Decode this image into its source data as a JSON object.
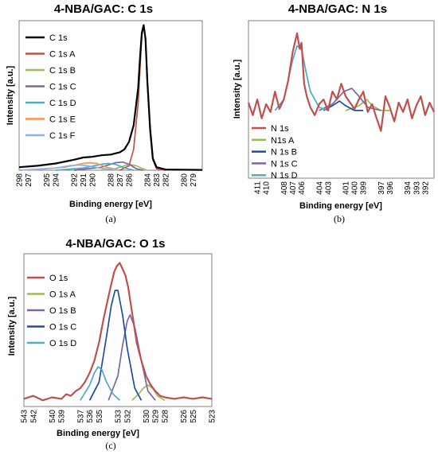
{
  "chart_data": [
    {
      "type": "line",
      "title": "4-NBA/GAC: C 1s",
      "xlabel": "Binding energy [eV]",
      "ylabel": "Intensity [a.u.]",
      "caption": "(a)",
      "x_reversed": true,
      "xlim": [
        298,
        278
      ],
      "ylim": [
        0,
        1.0
      ],
      "x_ticks": [
        298,
        297,
        295,
        294,
        292,
        291,
        290,
        288,
        287,
        286,
        284,
        283,
        282,
        280,
        279
      ],
      "legend_position": "left",
      "series": [
        {
          "name": "C 1s",
          "color": "#000000",
          "x": [
            298,
            296,
            294,
            292,
            291,
            290,
            289,
            288,
            287,
            286.5,
            286,
            285.5,
            285,
            284.8,
            284.6,
            284.4,
            284.2,
            284,
            283.7,
            283.4,
            283,
            282,
            280,
            278
          ],
          "y": [
            0.02,
            0.03,
            0.045,
            0.07,
            0.085,
            0.09,
            0.1,
            0.105,
            0.12,
            0.14,
            0.19,
            0.3,
            0.55,
            0.75,
            0.92,
            0.97,
            0.88,
            0.6,
            0.28,
            0.08,
            0.02,
            0.005,
            0.003,
            0.002
          ]
        },
        {
          "name": "C 1s A",
          "color": "#c0504d",
          "x": [
            287,
            286,
            285.5,
            285,
            284.8,
            284.6,
            284.4,
            284.2,
            284,
            283.7,
            283.4,
            283,
            282
          ],
          "y": [
            0.0,
            0.03,
            0.14,
            0.45,
            0.68,
            0.9,
            0.97,
            0.88,
            0.58,
            0.25,
            0.07,
            0.01,
            0.0
          ]
        },
        {
          "name": "C 1s B",
          "color": "#9bbb59",
          "x": [
            289,
            287.5,
            286.5,
            286,
            285.2,
            284.5,
            284
          ],
          "y": [
            0.0,
            0.01,
            0.03,
            0.04,
            0.03,
            0.01,
            0.0
          ]
        },
        {
          "name": "C 1s C",
          "color": "#8064a2",
          "x": [
            292,
            289,
            287.5,
            286.7,
            286,
            285.2,
            284.5
          ],
          "y": [
            0.0,
            0.02,
            0.05,
            0.055,
            0.04,
            0.01,
            0.0
          ]
        },
        {
          "name": "C 1s D",
          "color": "#4bacc6",
          "x": [
            294,
            291,
            289,
            288.3,
            287.5,
            286.5,
            285.5
          ],
          "y": [
            0.0,
            0.015,
            0.04,
            0.045,
            0.04,
            0.015,
            0.0
          ]
        },
        {
          "name": "C 1s E",
          "color": "#f79646",
          "x": [
            297,
            293,
            291,
            290.3,
            289.5,
            288.5,
            287
          ],
          "y": [
            0.0,
            0.02,
            0.045,
            0.05,
            0.045,
            0.02,
            0.0
          ]
        },
        {
          "name": "C 1s F",
          "color": "#8db3e2",
          "x": [
            298,
            294,
            292.5,
            291.5,
            290.5,
            289,
            287
          ],
          "y": [
            0.0,
            0.015,
            0.03,
            0.035,
            0.03,
            0.012,
            0.0
          ]
        }
      ]
    },
    {
      "type": "line",
      "title": "4-NBA/GAC: N 1s",
      "xlabel": "Binding energy [eV]",
      "ylabel": "Intensity [a.u.]",
      "caption": "(b)",
      "x_reversed": true,
      "xlim": [
        412,
        391
      ],
      "ylim": [
        0,
        1.0
      ],
      "x_ticks": [
        411,
        410,
        408,
        407,
        406,
        404,
        403,
        401,
        400,
        399,
        397,
        396,
        394,
        393,
        392
      ],
      "legend_position": "bottom-left",
      "series": [
        {
          "name": "N 1s",
          "color": "#c0504d",
          "x": [
            412,
            411.5,
            411,
            410.5,
            410,
            409.5,
            409,
            408.5,
            408,
            407.5,
            407,
            406.5,
            406.2,
            406,
            405.7,
            405.4,
            405,
            404.5,
            404,
            403.5,
            403,
            402.5,
            402,
            401.5,
            401,
            400.5,
            400,
            399.5,
            399,
            398.5,
            398,
            397.5,
            397,
            396.5,
            396,
            395.5,
            395,
            394.5,
            394,
            393.5,
            393,
            392.5,
            392,
            391.5,
            391
          ],
          "y": [
            0.48,
            0.4,
            0.5,
            0.38,
            0.47,
            0.42,
            0.55,
            0.44,
            0.5,
            0.62,
            0.8,
            0.92,
            0.82,
            0.86,
            0.6,
            0.52,
            0.45,
            0.4,
            0.47,
            0.5,
            0.43,
            0.55,
            0.5,
            0.6,
            0.52,
            0.48,
            0.44,
            0.5,
            0.55,
            0.42,
            0.47,
            0.38,
            0.3,
            0.52,
            0.45,
            0.36,
            0.48,
            0.42,
            0.5,
            0.38,
            0.46,
            0.52,
            0.4,
            0.48,
            0.42
          ]
        },
        {
          "name": "N1s A",
          "color": "#9bbb59",
          "x": [
            401,
            399.5,
            398.6,
            398,
            397,
            396
          ],
          "y": [
            0.43,
            0.46,
            0.5,
            0.46,
            0.43,
            0.43
          ]
        },
        {
          "name": "N 1s B",
          "color": "#1f4e9c",
          "x": [
            403.5,
            402.5,
            401.7,
            401,
            400,
            399
          ],
          "y": [
            0.43,
            0.46,
            0.49,
            0.46,
            0.43,
            0.43
          ]
        },
        {
          "name": "N 1s C",
          "color": "#8064a2",
          "x": [
            404,
            402.5,
            401.2,
            400.3,
            399.5,
            398.5,
            397
          ],
          "y": [
            0.43,
            0.47,
            0.55,
            0.57,
            0.52,
            0.45,
            0.43
          ]
        },
        {
          "name": "N 1s D",
          "color": "#4bacc6",
          "x": [
            409,
            408,
            407,
            406.5,
            406,
            405.5,
            405,
            404,
            403
          ],
          "y": [
            0.43,
            0.5,
            0.75,
            0.84,
            0.82,
            0.68,
            0.55,
            0.45,
            0.43
          ]
        }
      ]
    },
    {
      "type": "line",
      "title": "4-NBA/GAC: O 1s",
      "xlabel": "Binding energy [eV]",
      "ylabel": "Intensity [a.u.]",
      "caption": "(c)",
      "x_reversed": true,
      "xlim": [
        543,
        523
      ],
      "ylim": [
        0,
        1.0
      ],
      "x_ticks": [
        543,
        542,
        540,
        539,
        537,
        536,
        535,
        533,
        532,
        530,
        529,
        528,
        526,
        525,
        523
      ],
      "legend_position": "left",
      "series": [
        {
          "name": "O 1s",
          "color": "#c0504d",
          "x": [
            543,
            542,
            541,
            540,
            539,
            538.5,
            538,
            537.5,
            537,
            536.5,
            536,
            535.5,
            535,
            534.5,
            534,
            533.7,
            533.4,
            533.1,
            532.8,
            532.5,
            532.2,
            531.9,
            531.6,
            531.3,
            531,
            530.5,
            530,
            529.5,
            529,
            528.5,
            528,
            527,
            526,
            525,
            524,
            523
          ],
          "y": [
            0.05,
            0.07,
            0.04,
            0.06,
            0.05,
            0.08,
            0.07,
            0.1,
            0.12,
            0.16,
            0.22,
            0.3,
            0.42,
            0.58,
            0.72,
            0.8,
            0.88,
            0.92,
            0.94,
            0.9,
            0.86,
            0.78,
            0.66,
            0.54,
            0.42,
            0.3,
            0.2,
            0.14,
            0.1,
            0.07,
            0.06,
            0.05,
            0.06,
            0.05,
            0.06,
            0.05
          ]
        },
        {
          "name": "O 1s A",
          "color": "#9bbb59",
          "x": [
            531.5,
            530.8,
            530.3,
            529.8,
            529.3,
            528.8,
            528
          ],
          "y": [
            0.04,
            0.08,
            0.12,
            0.14,
            0.12,
            0.07,
            0.04
          ]
        },
        {
          "name": "O 1s B",
          "color": "#8064a2",
          "x": [
            534,
            533,
            532.5,
            532,
            531.7,
            531.2,
            530.5,
            529.8,
            529
          ],
          "y": [
            0.04,
            0.2,
            0.4,
            0.56,
            0.6,
            0.52,
            0.3,
            0.1,
            0.04
          ]
        },
        {
          "name": "O 1s C",
          "color": "#1f4e9c",
          "x": [
            536,
            535,
            534.2,
            533.7,
            533.3,
            533,
            532.5,
            532,
            531.2,
            530.5
          ],
          "y": [
            0.04,
            0.16,
            0.46,
            0.66,
            0.76,
            0.76,
            0.6,
            0.38,
            0.12,
            0.04
          ]
        },
        {
          "name": "O 1s D",
          "color": "#4bacc6",
          "x": [
            537,
            536,
            535.5,
            535.1,
            534.7,
            534.2,
            533.5,
            532.8
          ],
          "y": [
            0.04,
            0.14,
            0.22,
            0.26,
            0.24,
            0.16,
            0.08,
            0.04
          ]
        }
      ]
    }
  ]
}
